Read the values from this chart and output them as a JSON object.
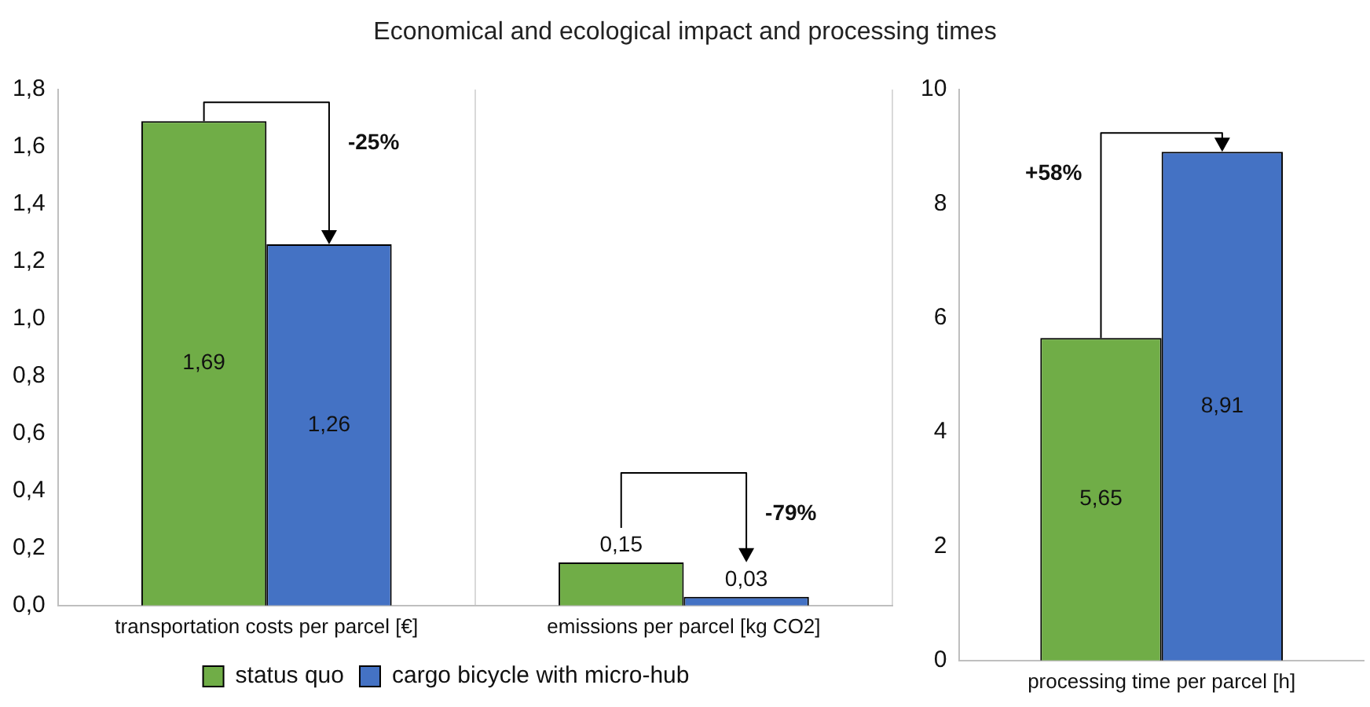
{
  "chart_data": [
    {
      "type": "bar",
      "title": "Economical and ecological impact and processing times",
      "categories": [
        "transportation costs per parcel [€]",
        "emissions per parcel [kg CO2]"
      ],
      "series": [
        {
          "name": "status quo",
          "color": "#70ad47",
          "values": [
            1.69,
            0.15
          ],
          "value_labels": [
            "1,69",
            "0,15"
          ]
        },
        {
          "name": "cargo bicycle with micro-hub",
          "color": "#4472c4",
          "values": [
            1.26,
            0.03
          ],
          "value_labels": [
            "1,26",
            "0,03"
          ]
        }
      ],
      "ylim": [
        0,
        1.8
      ],
      "yticks": [
        {
          "value": 0,
          "label": "0,0"
        },
        {
          "value": 0.2,
          "label": "0,2"
        },
        {
          "value": 0.4,
          "label": "0,4"
        },
        {
          "value": 0.6,
          "label": "0,6"
        },
        {
          "value": 0.8,
          "label": "0,8"
        },
        {
          "value": 1,
          "label": "1,0"
        },
        {
          "value": 1.2,
          "label": "1,2"
        },
        {
          "value": 1.4,
          "label": "1,4"
        },
        {
          "value": 1.6,
          "label": "1,6"
        },
        {
          "value": 1.8,
          "label": "1,8"
        }
      ],
      "grid": "x",
      "legend": "bottom",
      "annotations": [
        "-25%",
        "-79%"
      ]
    },
    {
      "type": "bar",
      "categories": [
        "processing time per parcel [h]"
      ],
      "series": [
        {
          "color": "#70ad47",
          "values": [
            5.65
          ],
          "value_labels": [
            "5,65"
          ]
        },
        {
          "color": "#4472c4",
          "values": [
            8.91
          ],
          "value_labels": [
            "8,91"
          ]
        }
      ],
      "ylim": [
        0,
        10
      ],
      "yticks": [
        0,
        2,
        4,
        6,
        8,
        10
      ],
      "annotations": [
        "+58%"
      ]
    }
  ]
}
